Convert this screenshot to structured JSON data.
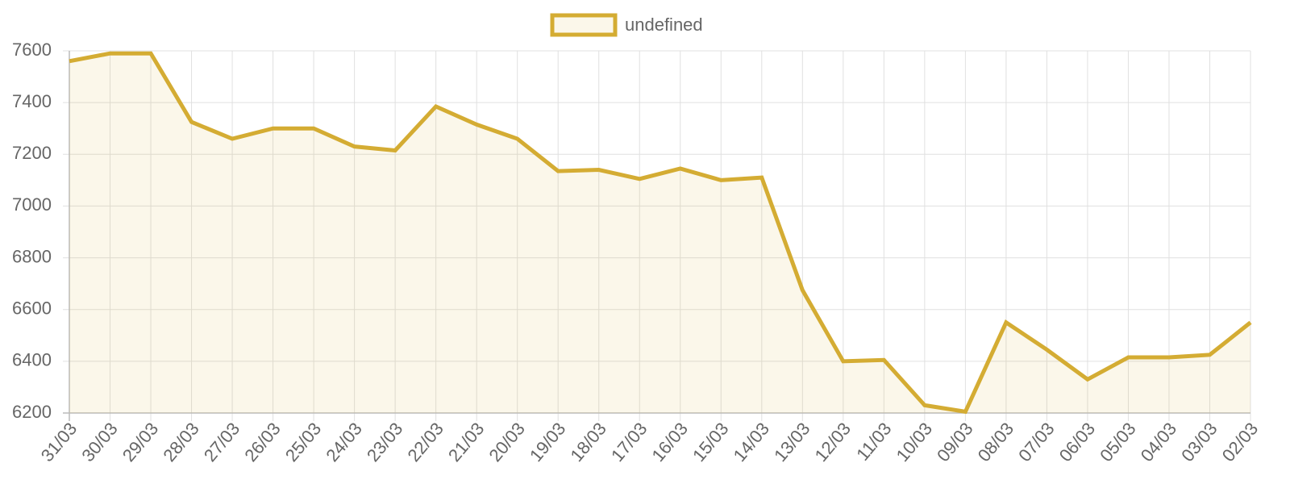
{
  "chart_data": {
    "type": "line",
    "categories": [
      "31/03",
      "30/03",
      "29/03",
      "28/03",
      "27/03",
      "26/03",
      "25/03",
      "24/03",
      "23/03",
      "22/03",
      "21/03",
      "20/03",
      "19/03",
      "18/03",
      "17/03",
      "16/03",
      "15/03",
      "14/03",
      "13/03",
      "12/03",
      "11/03",
      "10/03",
      "09/03",
      "08/03",
      "07/03",
      "06/03",
      "05/03",
      "04/03",
      "03/03",
      "02/03"
    ],
    "series": [
      {
        "name": "undefined",
        "color": "#d4ac33",
        "values": [
          7560,
          7590,
          7590,
          7325,
          7260,
          7300,
          7300,
          7230,
          7215,
          7385,
          7315,
          7260,
          7135,
          7140,
          7105,
          7145,
          7100,
          7110,
          6675,
          6400,
          6405,
          6230,
          6205,
          6550,
          6445,
          6330,
          6415,
          6415,
          6425,
          6550
        ]
      }
    ],
    "ylim": [
      6200,
      7600
    ],
    "yticks": [
      6200,
      6400,
      6600,
      6800,
      7000,
      7200,
      7400,
      7600
    ],
    "grid": true,
    "legend": "top",
    "fill": true
  }
}
